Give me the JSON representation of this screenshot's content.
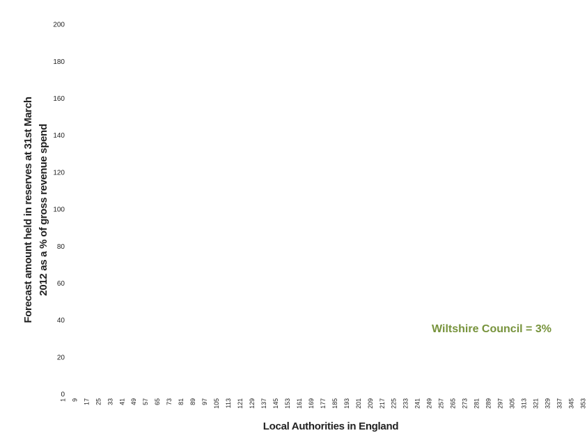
{
  "chart_data": {
    "type": "bar",
    "ylabel": [
      "Forecast amount held in reserves at 31st March",
      "2012 as a % of gross revenue spend"
    ],
    "xlabel": "Local Authorities in England",
    "annotation": "Wiltshire Council = 3%",
    "annotation_color": "#77933c",
    "categories": [
      "1",
      "9",
      "17",
      "25",
      "33",
      "41",
      "49",
      "57",
      "65",
      "73",
      "81",
      "89",
      "97",
      "105",
      "113",
      "121",
      "129",
      "137",
      "145",
      "153",
      "161",
      "169",
      "177",
      "185",
      "193",
      "201",
      "209",
      "217",
      "225",
      "233",
      "241",
      "249",
      "257",
      "265",
      "273",
      "281",
      "289",
      "297",
      "305",
      "313",
      "321",
      "329",
      "337",
      "345",
      "353"
    ],
    "ylim": [
      0,
      200
    ],
    "yticks": [
      0,
      20,
      40,
      60,
      80,
      100,
      120,
      140,
      160,
      180,
      200
    ],
    "grid": false
  }
}
